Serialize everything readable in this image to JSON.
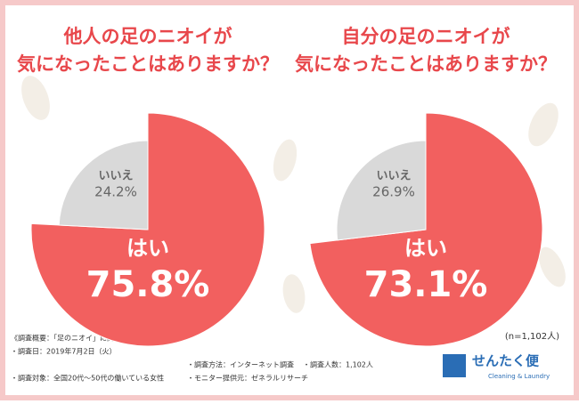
{
  "chart_data": [
    {
      "type": "pie",
      "title": [
        "他人の足のニオイが",
        "気になったことはありますか？"
      ],
      "categories": [
        "はい",
        "いいえ"
      ],
      "values": [
        75.8,
        24.2
      ],
      "value_labels": [
        "75.8%",
        "24.2%"
      ],
      "colors": [
        "#f2605f",
        "#d9d9d9"
      ]
    },
    {
      "type": "pie",
      "title": [
        "自分の足のニオイが",
        "気になったことはありますか？"
      ],
      "categories": [
        "はい",
        "いいえ"
      ],
      "values": [
        73.1,
        26.9
      ],
      "value_labels": [
        "73.1%",
        "26.9%"
      ],
      "colors": [
        "#f2605f",
        "#d9d9d9"
      ]
    }
  ],
  "sample_note": "(n=1,102人)",
  "survey": {
    "heading": "《調査概要：「足のニオイ」に関する意識調査》",
    "items": [
      "・調査日：2019年7月2日（火）",
      "・調査方法：インターネット調査",
      "・調査人数：1,102人",
      "・調査対象：全国20代～50代の働いている女性",
      "・モニター提供元：ゼネラルリサーチ"
    ]
  },
  "logo": {
    "name": "せんたく便",
    "tagline": "Cleaning & Laundry"
  }
}
